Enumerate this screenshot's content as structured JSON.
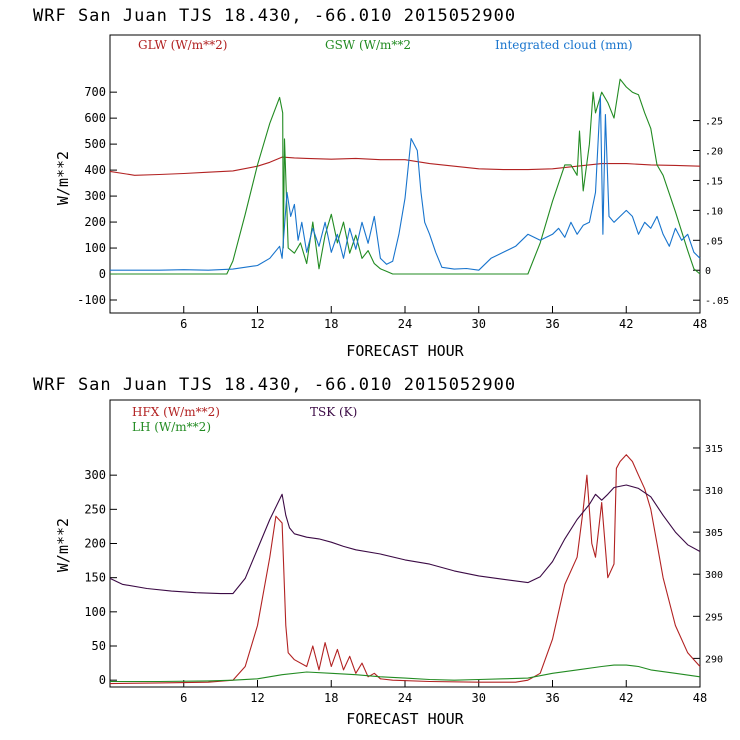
{
  "chart_data": [
    {
      "type": "line",
      "title": "WRF  San Juan TJS  18.430, -66.010  2015052900",
      "xlabel": "FORECAST HOUR",
      "ylabel": "W/m**2",
      "xlim": [
        0,
        48
      ],
      "ylim": [
        -150,
        920
      ],
      "x_ticks": [
        6,
        12,
        18,
        24,
        30,
        36,
        42,
        48
      ],
      "y_ticks": [
        -100,
        0,
        100,
        200,
        300,
        400,
        500,
        600,
        700
      ],
      "y2_ticks": [
        -0.05,
        0,
        0.05,
        0.1,
        0.15,
        0.2,
        0.25
      ],
      "y2_tick_labels": [
        "-.05",
        "0",
        ".05",
        ".10",
        ".15",
        ".20",
        ".25"
      ],
      "y2lim": [
        -0.0714,
        0.3929
      ],
      "series": [
        {
          "name": "GLW (W/m**2)",
          "axis": "left",
          "color": "#b22222",
          "x": [
            0,
            2,
            4,
            6,
            8,
            10,
            12,
            13,
            14,
            15,
            16,
            18,
            20,
            22,
            24,
            26,
            28,
            30,
            32,
            34,
            36,
            38,
            40,
            42,
            44,
            46,
            48
          ],
          "y": [
            395,
            380,
            383,
            387,
            392,
            397,
            415,
            430,
            450,
            447,
            445,
            442,
            445,
            440,
            440,
            425,
            415,
            405,
            402,
            402,
            405,
            415,
            425,
            425,
            420,
            418,
            415
          ]
        },
        {
          "name": "GSW (W/m**2",
          "axis": "left",
          "color": "#228b22",
          "x": [
            0,
            9.5,
            10,
            11,
            12,
            13,
            13.8,
            14.05,
            14.1,
            14.2,
            14.5,
            15,
            15.5,
            16,
            16.5,
            17,
            17.5,
            18,
            18.5,
            19,
            19.5,
            20,
            20.5,
            21,
            21.5,
            22,
            22.5,
            23,
            34,
            35,
            36,
            37,
            37.5,
            38,
            38.2,
            38.5,
            39,
            39.3,
            39.5,
            40,
            40.5,
            41,
            41.5,
            42,
            42.5,
            43,
            43.5,
            44,
            44.5,
            45,
            46,
            47,
            47.5,
            48
          ],
          "y": [
            0,
            0,
            50,
            230,
            420,
            580,
            680,
            620,
            100,
            520,
            100,
            80,
            120,
            40,
            200,
            20,
            150,
            230,
            120,
            200,
            80,
            150,
            60,
            90,
            40,
            20,
            10,
            0,
            0,
            120,
            280,
            420,
            420,
            380,
            550,
            320,
            500,
            700,
            620,
            700,
            660,
            600,
            750,
            720,
            700,
            690,
            620,
            560,
            420,
            380,
            240,
            90,
            20,
            0
          ]
        },
        {
          "name": "Integrated cloud (mm)",
          "axis": "right",
          "color": "#1874cd",
          "x": [
            0,
            4,
            6,
            8,
            10,
            12,
            13,
            13.8,
            14,
            14.4,
            14.7,
            15,
            15.3,
            15.6,
            16,
            16.5,
            17,
            17.5,
            18,
            18.5,
            19,
            19.5,
            20,
            20.5,
            21,
            21.5,
            22,
            22.5,
            23,
            23.5,
            24,
            24.5,
            25,
            25.3,
            25.6,
            26,
            26.5,
            27,
            28,
            29,
            30,
            31,
            32,
            33,
            34,
            35,
            36,
            36.5,
            37,
            37.5,
            38,
            38.5,
            39,
            39.5,
            39.9,
            40.1,
            40.3,
            40.6,
            41,
            41.5,
            42,
            42.5,
            43,
            43.5,
            44,
            44.5,
            45,
            45.5,
            46,
            46.5,
            47,
            47.5,
            48
          ],
          "y": [
            0,
            0,
            0.001,
            0,
            0.002,
            0.008,
            0.02,
            0.04,
            0.02,
            0.13,
            0.09,
            0.11,
            0.05,
            0.08,
            0.03,
            0.07,
            0.04,
            0.08,
            0.03,
            0.06,
            0.02,
            0.07,
            0.035,
            0.08,
            0.045,
            0.09,
            0.02,
            0.01,
            0.015,
            0.06,
            0.12,
            0.22,
            0.2,
            0.13,
            0.08,
            0.06,
            0.03,
            0.005,
            0.002,
            0.003,
            0,
            0.02,
            0.03,
            0.04,
            0.06,
            0.05,
            0.06,
            0.07,
            0.055,
            0.08,
            0.06,
            0.075,
            0.08,
            0.13,
            0.29,
            0.06,
            0.26,
            0.09,
            0.08,
            0.09,
            0.1,
            0.09,
            0.06,
            0.08,
            0.07,
            0.09,
            0.06,
            0.04,
            0.07,
            0.05,
            0.06,
            0.03,
            0.02
          ]
        }
      ]
    },
    {
      "type": "line",
      "title": "WRF  San Juan TJS  18.430, -66.010  2015052900",
      "xlabel": "FORECAST HOUR",
      "ylabel": "W/m**2",
      "xlim": [
        0,
        48
      ],
      "ylim": [
        -10,
        410
      ],
      "x_ticks": [
        6,
        12,
        18,
        24,
        30,
        36,
        42,
        48
      ],
      "y_ticks": [
        0,
        50,
        100,
        150,
        200,
        250,
        300
      ],
      "y2_ticks": [
        290,
        295,
        300,
        305,
        310,
        315
      ],
      "y2_tick_labels": [
        "290",
        "295",
        "300",
        "305",
        "310",
        "315"
      ],
      "y2lim": [
        286.6,
        320.7
      ],
      "series": [
        {
          "name": "HFX (W/m**2)",
          "axis": "left",
          "color": "#b22222",
          "x": [
            0,
            4,
            8,
            10,
            11,
            12,
            13,
            13.5,
            14,
            14.3,
            14.5,
            15,
            16,
            16.5,
            17,
            17.5,
            18,
            18.5,
            19,
            19.5,
            20,
            20.5,
            21,
            21.5,
            22,
            23,
            26,
            30,
            33,
            34,
            35,
            36,
            37,
            38,
            38.5,
            38.8,
            39.2,
            39.5,
            40,
            40.5,
            41,
            41.2,
            41.5,
            42,
            42.5,
            43,
            43.5,
            44,
            44.5,
            45,
            46,
            47,
            47.5,
            48
          ],
          "y": [
            -5,
            -4,
            -3,
            0,
            20,
            80,
            180,
            240,
            230,
            80,
            40,
            30,
            20,
            50,
            15,
            55,
            20,
            45,
            15,
            35,
            10,
            25,
            5,
            10,
            2,
            0,
            -2,
            -3,
            -3,
            0,
            10,
            60,
            140,
            180,
            250,
            300,
            200,
            180,
            260,
            150,
            170,
            310,
            320,
            330,
            320,
            300,
            280,
            250,
            200,
            150,
            80,
            40,
            30,
            20
          ]
        },
        {
          "name": "LH (W/m**2)",
          "axis": "left",
          "color": "#228b22",
          "x": [
            0,
            4,
            8,
            10,
            12,
            14,
            16,
            18,
            20,
            22,
            24,
            26,
            28,
            30,
            32,
            34,
            36,
            38,
            40,
            41,
            42,
            43,
            44,
            46,
            48
          ],
          "y": [
            -2,
            -2,
            -1,
            0,
            2,
            8,
            12,
            10,
            8,
            5,
            3,
            1,
            0,
            1,
            2,
            3,
            10,
            15,
            20,
            22,
            22,
            20,
            15,
            10,
            5
          ]
        },
        {
          "name": "TSK (K)",
          "axis": "right",
          "color": "#3b0a45",
          "x": [
            0,
            1,
            3,
            5,
            7,
            9,
            10,
            11,
            12,
            13,
            14,
            14.3,
            14.6,
            15,
            16,
            17,
            18,
            19,
            20,
            22,
            24,
            26,
            28,
            30,
            32,
            34,
            35,
            36,
            37,
            38,
            39,
            39.5,
            40,
            40.5,
            41,
            42,
            43,
            44,
            45,
            46,
            47,
            48
          ],
          "y": [
            299.5,
            298.8,
            298.3,
            298.0,
            297.8,
            297.7,
            297.7,
            299.5,
            303.0,
            306.5,
            309.5,
            307.0,
            305.5,
            304.8,
            304.4,
            304.2,
            303.8,
            303.3,
            302.9,
            302.4,
            301.7,
            301.2,
            300.4,
            299.8,
            299.4,
            299.0,
            299.7,
            301.5,
            304.2,
            306.5,
            308.3,
            309.5,
            308.8,
            309.5,
            310.3,
            310.6,
            310.2,
            309.2,
            307.0,
            305.0,
            303.5,
            302.7
          ]
        }
      ]
    }
  ]
}
